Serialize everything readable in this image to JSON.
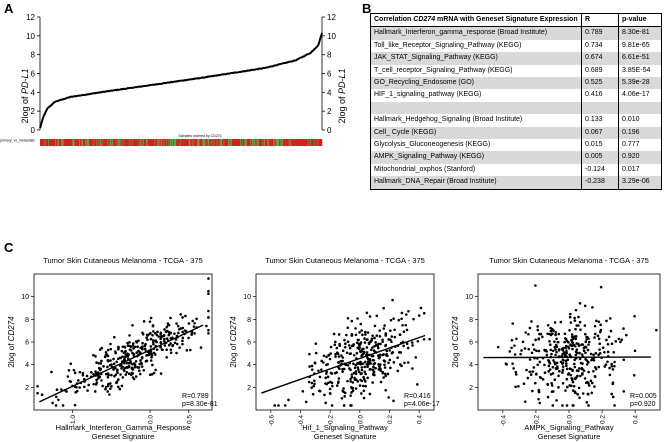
{
  "panel_labels": {
    "a": "A",
    "b": "B",
    "c": "C"
  },
  "panel_a": {
    "y_label": "2log of PD-L1",
    "y_label_prefix": "2log of ",
    "y_label_gene": "PD-L1",
    "y_ticks": [
      "0",
      "2",
      "4",
      "6",
      "8",
      "10",
      "12"
    ],
    "x_caption": "Samples ordered by CD274",
    "strip_label": "primary_vs_metastatic"
  },
  "table_b": {
    "header": {
      "title_prefix": "Correlation ",
      "gene": "CD274",
      "title_suffix": " mRNA with Geneset Signature Expression",
      "r": "R",
      "p": "p-value"
    },
    "rows": [
      {
        "name": "Hallmark_Interferon_gamma_response (Broad Institute)",
        "r": "0.789",
        "p": "8.30e-81"
      },
      {
        "name": "Toll_like_Receptor_Signaling_Pathway (KEGG)",
        "r": "0.734",
        "p": "9.81e-65"
      },
      {
        "name": "JAK_STAT_Signaling_Pathway (KEGG)",
        "r": "0.674",
        "p": "6.61e-51"
      },
      {
        "name": "T_cell_receptor_Signaling_Pathway (KEGG)",
        "r": "0.689",
        "p": "3.85E-54"
      },
      {
        "name": "GO_Recycling_Endosome (GO)",
        "r": "0.525",
        "p": "5.39e-28"
      },
      {
        "name": "HIF_1_signaling_pathway (KEGG)",
        "r": "0.416",
        "p": "4.06e-17"
      },
      {
        "name": "Hallmark_Hedgehog_Signaling (Broad Institute)",
        "r": "0.133",
        "p": "0.010"
      },
      {
        "name": "Cell_ Cycle (KEGG)",
        "r": "0.067",
        "p": "0.196"
      },
      {
        "name": "Glycolysis_Gluconeogenesis (KEGG)",
        "r": "0.015",
        "p": "0.777"
      },
      {
        "name": "AMPK_Signaling_Pathway (KEGG)",
        "r": "0.005",
        "p": "0.920"
      },
      {
        "name": "Mitochondrial_oxphos (Stanford)",
        "r": "-0.124",
        "p": "0.017"
      },
      {
        "name": "Hallmark_DNA_Repair (Broad Institute)",
        "r": "-0.238",
        "p": "3.29e-06"
      }
    ]
  },
  "chart_data": [
    {
      "type": "line",
      "title": "",
      "xlabel": "Samples ordered by CD274",
      "ylabel": "2log of PD-L1",
      "ylim": [
        0,
        12
      ],
      "n_samples": 375,
      "x": [
        0,
        5,
        10,
        20,
        40,
        80,
        150,
        220,
        300,
        340,
        360,
        370,
        375
      ],
      "y": [
        0.2,
        1.5,
        2.3,
        3.0,
        3.5,
        4.0,
        4.8,
        5.6,
        6.6,
        7.4,
        8.2,
        9.0,
        10.3
      ]
    },
    {
      "type": "scatter",
      "title": "Tumor Skin Cutaneous Melanoma - TCGA - 375",
      "xlabel": "Hallmark_Interferon_Gamma_Response Geneset Signature",
      "ylabel": "2log of CD274",
      "xlim": [
        -1.5,
        0.8
      ],
      "ylim": [
        0,
        12
      ],
      "x_ticks": [
        -1.0,
        0.0,
        0.5
      ],
      "y_ticks": [
        2,
        4,
        6,
        8,
        10
      ],
      "n": 375,
      "r": 0.789,
      "p": "8.30e-81",
      "fit": {
        "slope": 3.2,
        "intercept": 5.3
      },
      "x_mean": -0.2,
      "x_sd": 0.42,
      "y_mean": 4.65,
      "y_sd": 1.7,
      "stats_r": "R=0.789",
      "stats_p": "p=8.30e-81"
    },
    {
      "type": "scatter",
      "title": "Tumor Skin Cutaneous Melanoma - TCGA - 375",
      "xlabel": "Hif_1_Signaling_Pathway Geneset Signature",
      "ylabel": "2log of CD274",
      "xlim": [
        -0.7,
        0.5
      ],
      "ylim": [
        0,
        12
      ],
      "x_ticks": [
        -0.6,
        -0.4,
        -0.2,
        0.0,
        0.2,
        0.4
      ],
      "y_ticks": [
        2,
        4,
        6,
        8,
        10
      ],
      "n": 375,
      "r": 0.416,
      "p": "4.06e-17",
      "fit": {
        "slope": 4.6,
        "intercept": 4.55
      },
      "x_mean": 0.0,
      "x_sd": 0.17,
      "y_mean": 4.55,
      "y_sd": 1.9,
      "stats_r": "R=0.416",
      "stats_p": "p=4.06e-17"
    },
    {
      "type": "scatter",
      "title": "Tumor Skin Cutaneous Melanoma - TCGA - 375",
      "xlabel": "AMPK_Signaling_Pathway Geneset Signature",
      "ylabel": "2log of CD274",
      "xlim": [
        -0.55,
        0.55
      ],
      "ylim": [
        0,
        12
      ],
      "x_ticks": [
        -0.4,
        -0.2,
        0.0,
        0.2,
        0.4
      ],
      "y_ticks": [
        2,
        4,
        6,
        8,
        10
      ],
      "n": 375,
      "r": 0.005,
      "p": "0.920",
      "fit": {
        "slope": 0.05,
        "intercept": 4.65
      },
      "x_mean": 0.0,
      "x_sd": 0.16,
      "y_mean": 4.65,
      "y_sd": 1.9,
      "stats_r": "R=0.005",
      "stats_p": "p=0.920"
    }
  ],
  "scatter_xlabels": [
    [
      "Hallmark_Interferon_Gamma_Response",
      "Geneset Signature"
    ],
    [
      "Hif_1_Signaling_Pathway",
      "Geneset Signature"
    ],
    [
      "AMPK_Signaling_Pathway",
      "Geneset Signature"
    ]
  ],
  "scatter_ylabel_prefix": "2log of ",
  "scatter_ylabel_gene": "CD274"
}
